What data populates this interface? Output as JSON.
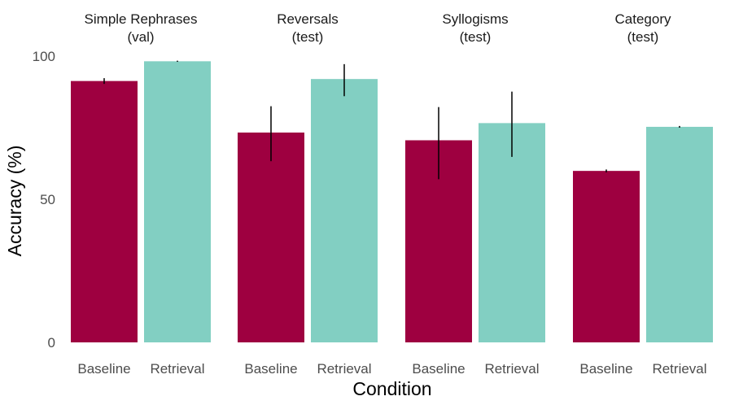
{
  "chart_data": {
    "type": "bar",
    "xlabel": "Condition",
    "ylabel": "Accuracy (%)",
    "ylim": [
      0,
      100
    ],
    "yticks": [
      0,
      50,
      100
    ],
    "grid": false,
    "legend": "none",
    "categories": [
      "Baseline",
      "Retrieval"
    ],
    "colors": {
      "Baseline": "#9e0040",
      "Retrieval": "#82cfc2"
    },
    "error_bar_color": "#000000",
    "facets": [
      {
        "title_line1": "Simple Rephrases",
        "title_line2": "(val)",
        "bars": [
          {
            "condition": "Baseline",
            "value": 91.3,
            "err_low": 90.3,
            "err_high": 92.3
          },
          {
            "condition": "Retrieval",
            "value": 98.2,
            "err_low": 98.0,
            "err_high": 98.4
          }
        ]
      },
      {
        "title_line1": "Reversals",
        "title_line2": "(test)",
        "bars": [
          {
            "condition": "Baseline",
            "value": 73.3,
            "err_low": 63.3,
            "err_high": 82.5
          },
          {
            "condition": "Retrieval",
            "value": 92.0,
            "err_low": 86.0,
            "err_high": 97.2
          }
        ]
      },
      {
        "title_line1": "Syllogisms",
        "title_line2": "(test)",
        "bars": [
          {
            "condition": "Baseline",
            "value": 70.6,
            "err_low": 57.0,
            "err_high": 82.2
          },
          {
            "condition": "Retrieval",
            "value": 76.6,
            "err_low": 64.8,
            "err_high": 87.6
          }
        ]
      },
      {
        "title_line1": "Category",
        "title_line2": "(test)",
        "bars": [
          {
            "condition": "Baseline",
            "value": 59.9,
            "err_low": 59.4,
            "err_high": 60.4
          },
          {
            "condition": "Retrieval",
            "value": 75.3,
            "err_low": 75.0,
            "err_high": 75.6
          }
        ]
      }
    ]
  }
}
